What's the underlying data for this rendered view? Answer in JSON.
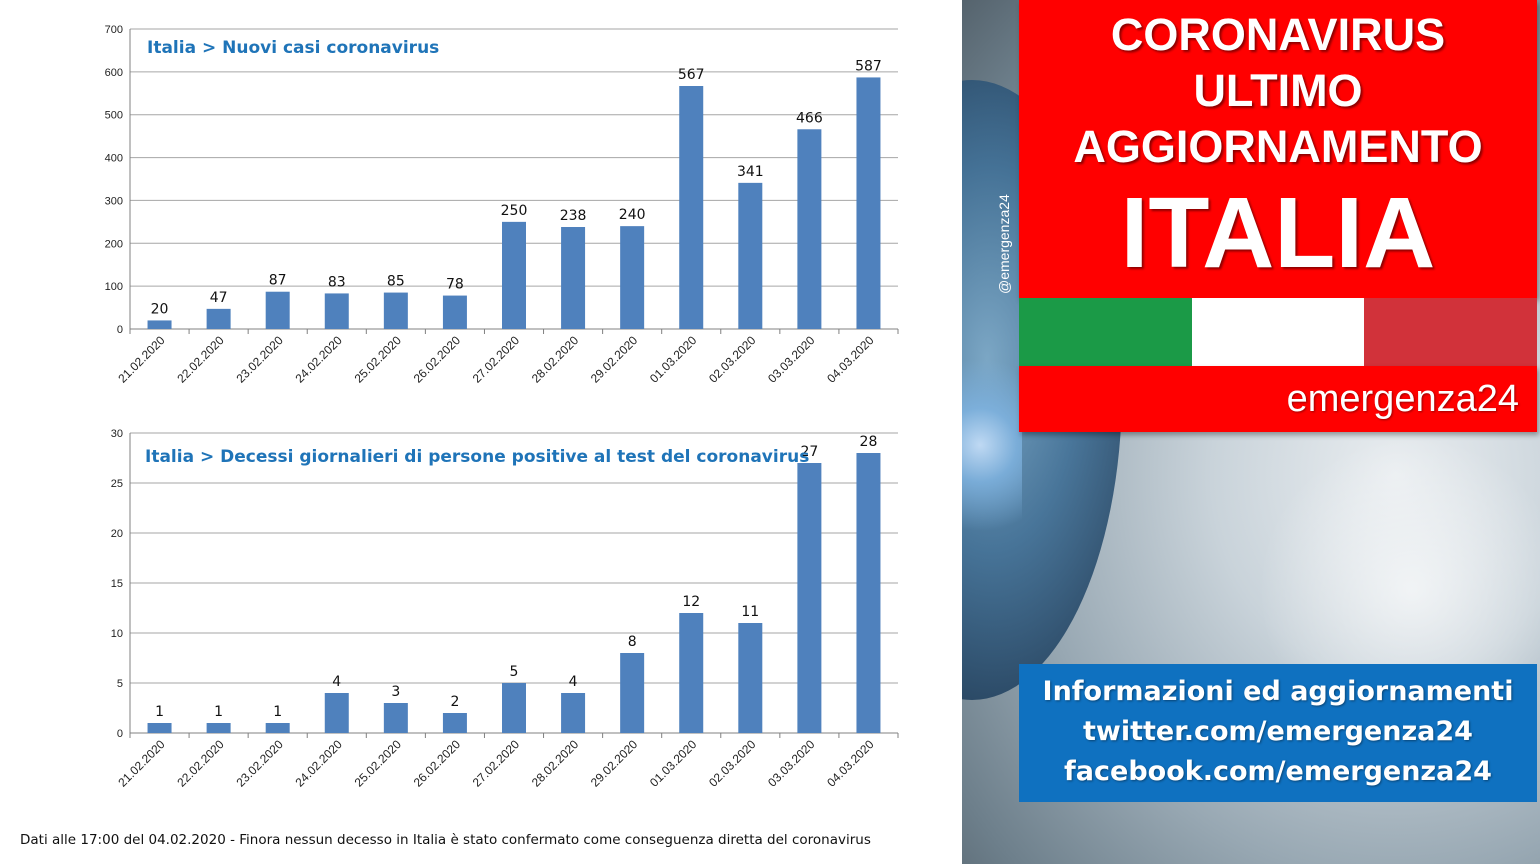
{
  "chart_data": [
    {
      "type": "bar",
      "title": "Italia > Nuovi casi coronavirus",
      "categories": [
        "21.02.2020",
        "22.02.2020",
        "23.02.2020",
        "24.02.2020",
        "25.02.2020",
        "26.02.2020",
        "27.02.2020",
        "28.02.2020",
        "29.02.2020",
        "01.03.2020",
        "02.03.2020",
        "03.03.2020",
        "04.03.2020"
      ],
      "values": [
        20,
        47,
        87,
        83,
        85,
        78,
        250,
        238,
        240,
        567,
        341,
        466,
        587
      ],
      "ylim": [
        0,
        700
      ],
      "yticks": [
        0,
        100,
        200,
        300,
        400,
        500,
        600,
        700
      ],
      "grid": true,
      "bar_color": "#4f81bd"
    },
    {
      "type": "bar",
      "title": "Italia > Decessi giornalieri di persone positive al test del coronavirus",
      "categories": [
        "21.02.2020",
        "22.02.2020",
        "23.02.2020",
        "24.02.2020",
        "25.02.2020",
        "26.02.2020",
        "27.02.2020",
        "28.02.2020",
        "29.02.2020",
        "01.03.2020",
        "02.03.2020",
        "03.03.2020",
        "04.03.2020"
      ],
      "values": [
        1,
        1,
        1,
        4,
        3,
        2,
        5,
        4,
        8,
        12,
        11,
        27,
        28
      ],
      "ylim": [
        0,
        30
      ],
      "yticks": [
        0,
        5,
        10,
        15,
        20,
        25,
        30
      ],
      "grid": true,
      "bar_color": "#4f81bd"
    }
  ],
  "footnote": "Dati alle 17:00 del 04.02.2020 - Finora nessun decesso in Italia è stato confermato come conseguenza diretta del coronavirus",
  "banner": {
    "line1": "CORONAVIRUS",
    "line2": "ULTIMO",
    "line3": "AGGIORNAMENTO",
    "line4": "ITALIA",
    "brand": "emergenza24",
    "handle": "@emergenza24"
  },
  "info": {
    "line1": "Informazioni ed aggiornamenti",
    "line2": "twitter.com/emergenza24",
    "line3": "facebook.com/emergenza24"
  },
  "colors": {
    "red": "#ff0000",
    "blue_box": "#0f71c0",
    "flag_green": "#1b9a47",
    "flag_white": "#ffffff",
    "flag_red": "#d1323a",
    "title_blue": "#1f74b8"
  }
}
